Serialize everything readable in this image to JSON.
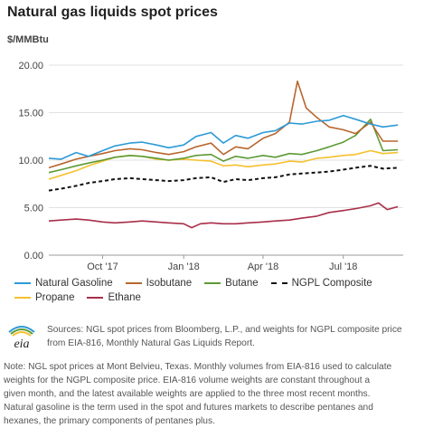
{
  "header": {
    "title": "Natural gas liquids spot prices",
    "unit": "$/MMBtu"
  },
  "chart_data": {
    "type": "line",
    "ylim": [
      0,
      20
    ],
    "y_ticks": [
      "0.00",
      "5.00",
      "10.00",
      "15.00",
      "20.00"
    ],
    "x_ticks": [
      {
        "label": "Oct '17",
        "date": "2017-10-01"
      },
      {
        "label": "Jan '18",
        "date": "2018-01-01"
      },
      {
        "label": "Apr '18",
        "date": "2018-04-01"
      },
      {
        "label": "Jul '18",
        "date": "2018-07-01"
      }
    ],
    "xlim": [
      "2017-08-01",
      "2018-09-07"
    ],
    "grid": "horizontal",
    "legend_position": "bottom",
    "series": [
      {
        "name": "Natural Gasoline",
        "color": "#2d9ad6",
        "style": "solid",
        "x": [
          "2017-08-01",
          "2017-08-15",
          "2017-09-01",
          "2017-09-15",
          "2017-10-01",
          "2017-10-15",
          "2017-11-01",
          "2017-11-15",
          "2017-12-01",
          "2017-12-15",
          "2018-01-01",
          "2018-01-15",
          "2018-02-01",
          "2018-02-15",
          "2018-03-01",
          "2018-03-15",
          "2018-04-01",
          "2018-04-15",
          "2018-05-01",
          "2018-05-15",
          "2018-06-01",
          "2018-06-15",
          "2018-07-01",
          "2018-07-15",
          "2018-08-01",
          "2018-08-15",
          "2018-09-01"
        ],
        "values": [
          10.2,
          10.1,
          10.8,
          10.4,
          11.0,
          11.5,
          11.8,
          11.9,
          11.6,
          11.3,
          11.6,
          12.5,
          12.9,
          11.8,
          12.6,
          12.3,
          12.9,
          13.1,
          13.9,
          13.8,
          14.1,
          14.2,
          14.7,
          14.3,
          13.8,
          13.5,
          13.7
        ]
      },
      {
        "name": "Isobutane",
        "color": "#b8662e",
        "style": "solid",
        "x": [
          "2017-08-01",
          "2017-08-15",
          "2017-09-01",
          "2017-09-15",
          "2017-10-01",
          "2017-10-15",
          "2017-11-01",
          "2017-11-15",
          "2017-12-01",
          "2017-12-15",
          "2018-01-01",
          "2018-01-15",
          "2018-02-01",
          "2018-02-15",
          "2018-03-01",
          "2018-03-15",
          "2018-04-01",
          "2018-04-15",
          "2018-05-01",
          "2018-05-10",
          "2018-05-20",
          "2018-06-01",
          "2018-06-15",
          "2018-07-01",
          "2018-07-15",
          "2018-08-01",
          "2018-08-15",
          "2018-09-01"
        ],
        "values": [
          9.2,
          9.6,
          10.1,
          10.4,
          10.7,
          11.0,
          11.2,
          11.1,
          10.8,
          10.6,
          10.9,
          11.4,
          11.8,
          10.6,
          11.4,
          11.2,
          12.3,
          12.8,
          14.0,
          18.3,
          15.5,
          14.5,
          13.5,
          13.2,
          12.8,
          14.0,
          12.0,
          12.0
        ]
      },
      {
        "name": "Butane",
        "color": "#5d9a35",
        "style": "solid",
        "x": [
          "2017-08-01",
          "2017-08-15",
          "2017-09-01",
          "2017-09-15",
          "2017-10-01",
          "2017-10-15",
          "2017-11-01",
          "2017-11-15",
          "2017-12-01",
          "2017-12-15",
          "2018-01-01",
          "2018-01-15",
          "2018-02-01",
          "2018-02-15",
          "2018-03-01",
          "2018-03-15",
          "2018-04-01",
          "2018-04-15",
          "2018-05-01",
          "2018-05-15",
          "2018-06-01",
          "2018-06-15",
          "2018-07-01",
          "2018-07-15",
          "2018-08-01",
          "2018-08-15",
          "2018-09-01"
        ],
        "values": [
          8.7,
          9.0,
          9.4,
          9.7,
          10.0,
          10.3,
          10.5,
          10.4,
          10.2,
          10.0,
          10.2,
          10.5,
          10.6,
          9.9,
          10.4,
          10.2,
          10.5,
          10.3,
          10.7,
          10.6,
          11.0,
          11.4,
          11.9,
          12.6,
          14.3,
          11.0,
          11.1
        ]
      },
      {
        "name": "NGPL Composite",
        "color": "#111111",
        "style": "dashed",
        "x": [
          "2017-08-01",
          "2017-08-15",
          "2017-09-01",
          "2017-09-15",
          "2017-10-01",
          "2017-10-15",
          "2017-11-01",
          "2017-11-15",
          "2017-12-01",
          "2017-12-15",
          "2018-01-01",
          "2018-01-15",
          "2018-02-01",
          "2018-02-15",
          "2018-03-01",
          "2018-03-15",
          "2018-04-01",
          "2018-04-15",
          "2018-05-01",
          "2018-05-15",
          "2018-06-01",
          "2018-06-15",
          "2018-07-01",
          "2018-07-15",
          "2018-08-01",
          "2018-08-15",
          "2018-09-01"
        ],
        "values": [
          6.8,
          7.0,
          7.3,
          7.6,
          7.8,
          8.0,
          8.1,
          8.0,
          7.9,
          7.8,
          7.9,
          8.1,
          8.2,
          7.7,
          8.0,
          7.9,
          8.1,
          8.2,
          8.5,
          8.6,
          8.7,
          8.8,
          9.0,
          9.2,
          9.4,
          9.1,
          9.2
        ]
      },
      {
        "name": "Propane",
        "color": "#f5c12e",
        "style": "solid",
        "x": [
          "2017-08-01",
          "2017-08-15",
          "2017-09-01",
          "2017-09-15",
          "2017-10-01",
          "2017-10-15",
          "2017-11-01",
          "2017-11-15",
          "2017-12-01",
          "2017-12-15",
          "2018-01-01",
          "2018-01-15",
          "2018-02-01",
          "2018-02-15",
          "2018-03-01",
          "2018-03-15",
          "2018-04-01",
          "2018-04-15",
          "2018-05-01",
          "2018-05-15",
          "2018-06-01",
          "2018-06-15",
          "2018-07-01",
          "2018-07-15",
          "2018-08-01",
          "2018-08-15",
          "2018-09-01"
        ],
        "values": [
          8.0,
          8.4,
          8.9,
          9.4,
          9.9,
          10.3,
          10.5,
          10.4,
          10.1,
          10.0,
          10.1,
          10.0,
          9.9,
          9.4,
          9.5,
          9.3,
          9.5,
          9.6,
          9.9,
          9.8,
          10.2,
          10.3,
          10.5,
          10.6,
          11.0,
          10.7,
          10.8
        ]
      },
      {
        "name": "Ethane",
        "color": "#a82e4a",
        "style": "solid",
        "x": [
          "2017-08-01",
          "2017-08-15",
          "2017-09-01",
          "2017-09-15",
          "2017-10-01",
          "2017-10-15",
          "2017-11-01",
          "2017-11-15",
          "2017-12-01",
          "2017-12-15",
          "2018-01-01",
          "2018-01-10",
          "2018-01-20",
          "2018-02-01",
          "2018-02-15",
          "2018-03-01",
          "2018-03-15",
          "2018-04-01",
          "2018-04-15",
          "2018-05-01",
          "2018-05-15",
          "2018-06-01",
          "2018-06-15",
          "2018-07-01",
          "2018-07-15",
          "2018-08-01",
          "2018-08-10",
          "2018-08-20",
          "2018-09-01"
        ],
        "values": [
          3.6,
          3.7,
          3.8,
          3.7,
          3.5,
          3.4,
          3.5,
          3.6,
          3.5,
          3.4,
          3.3,
          2.9,
          3.3,
          3.4,
          3.3,
          3.3,
          3.4,
          3.5,
          3.6,
          3.7,
          3.9,
          4.1,
          4.5,
          4.7,
          4.9,
          5.2,
          5.5,
          4.8,
          5.1
        ]
      }
    ]
  },
  "sources": "Sources: NGL spot prices from Bloomberg, L.P., and weights for NGPL composite price from EIA-816, Monthly Natural Gas Liquids Report.",
  "note": "Note: NGL spot prices at Mont Belvieu, Texas. Monthly volumes from EIA-816 used to calculate weights for the NGPL composite price. EIA-816 volume weights are constant throughout a given month, and the latest available weights are applied to the three most recent months. Natural gasoline is the term used in the spot and futures markets to describe pentanes and hexanes, the primary components of pentanes plus.",
  "logo": {
    "text": "eia",
    "colors": [
      "#2d9ad6",
      "#5d9a35",
      "#f5c12e"
    ]
  }
}
